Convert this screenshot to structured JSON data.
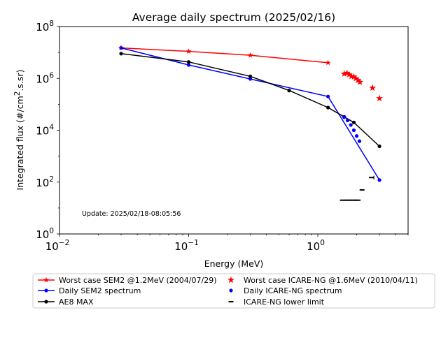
{
  "chart_data": {
    "type": "line",
    "title": "Average daily spectrum (2025/02/16)",
    "xlabel": "Energy (MeV)",
    "ylabel_main": "Integrated flux (#/cm",
    "ylabel_sup": "2",
    "ylabel_tail": ".s.sr)",
    "x_scale": "log",
    "y_scale": "log",
    "xlim": [
      0.01,
      5
    ],
    "ylim": [
      1,
      100000000
    ],
    "x_ticks": [
      {
        "value": 0.01,
        "base": "10",
        "exp": "−2"
      },
      {
        "value": 0.1,
        "base": "10",
        "exp": "−1"
      },
      {
        "value": 1,
        "base": "10",
        "exp": "0"
      }
    ],
    "y_ticks": [
      {
        "value": 1,
        "base": "10",
        "exp": "0"
      },
      {
        "value": 100,
        "base": "10",
        "exp": "2"
      },
      {
        "value": 10000,
        "base": "10",
        "exp": "4"
      },
      {
        "value": 1000000,
        "base": "10",
        "exp": "6"
      },
      {
        "value": 100000000,
        "base": "10",
        "exp": "8"
      }
    ],
    "annotation": "Update: 2025/02/18-08:05:56",
    "legend_placement": "below",
    "series": [
      {
        "name": "Worst case SEM2 @1.2MeV (2004/07/29)",
        "kind": "line-star",
        "color": "#ff0000",
        "x": [
          0.03,
          0.1,
          0.3,
          1.2
        ],
        "y": [
          15000000,
          11000000,
          7800000,
          4000000
        ]
      },
      {
        "name": "Daily SEM2 spectrum",
        "kind": "line-dot",
        "color": "#0000ff",
        "x": [
          0.03,
          0.1,
          0.3,
          1.2,
          3.0
        ],
        "y": [
          15000000,
          3300000,
          950000,
          200000,
          120
        ]
      },
      {
        "name": "AE8 MAX",
        "kind": "line-dot",
        "color": "#000000",
        "x": [
          0.03,
          0.1,
          0.3,
          0.6,
          1.2,
          1.6,
          1.9,
          3.0
        ],
        "y": [
          9000000,
          4300000,
          1200000,
          340000,
          75000,
          33000,
          20000,
          2400
        ]
      },
      {
        "name": "Worst case ICARE-NG @1.6MeV (2010/04/11)",
        "kind": "star",
        "color": "#ff0000",
        "x": [
          1.6,
          1.68,
          1.75,
          1.82,
          1.9,
          1.97,
          2.05,
          2.12,
          2.65,
          3.0
        ],
        "y": [
          1500000,
          1600000,
          1400000,
          1200000,
          1150000,
          1000000,
          850000,
          720000,
          430000,
          170000
        ]
      },
      {
        "name": "Daily ICARE-NG spectrum",
        "kind": "dot",
        "color": "#0000ff",
        "x": [
          1.6,
          1.7,
          1.8,
          1.9,
          2.0,
          2.1
        ],
        "y": [
          32000,
          24000,
          16000,
          10000,
          6000,
          3800
        ]
      },
      {
        "name": "ICARE-NG lower limit",
        "kind": "dash",
        "color": "#000000",
        "x": [
          1.55,
          1.65,
          1.75,
          1.85,
          1.95,
          2.05,
          2.2,
          2.6
        ],
        "y": [
          20,
          20,
          20,
          20,
          20,
          20,
          50,
          150
        ]
      }
    ]
  }
}
